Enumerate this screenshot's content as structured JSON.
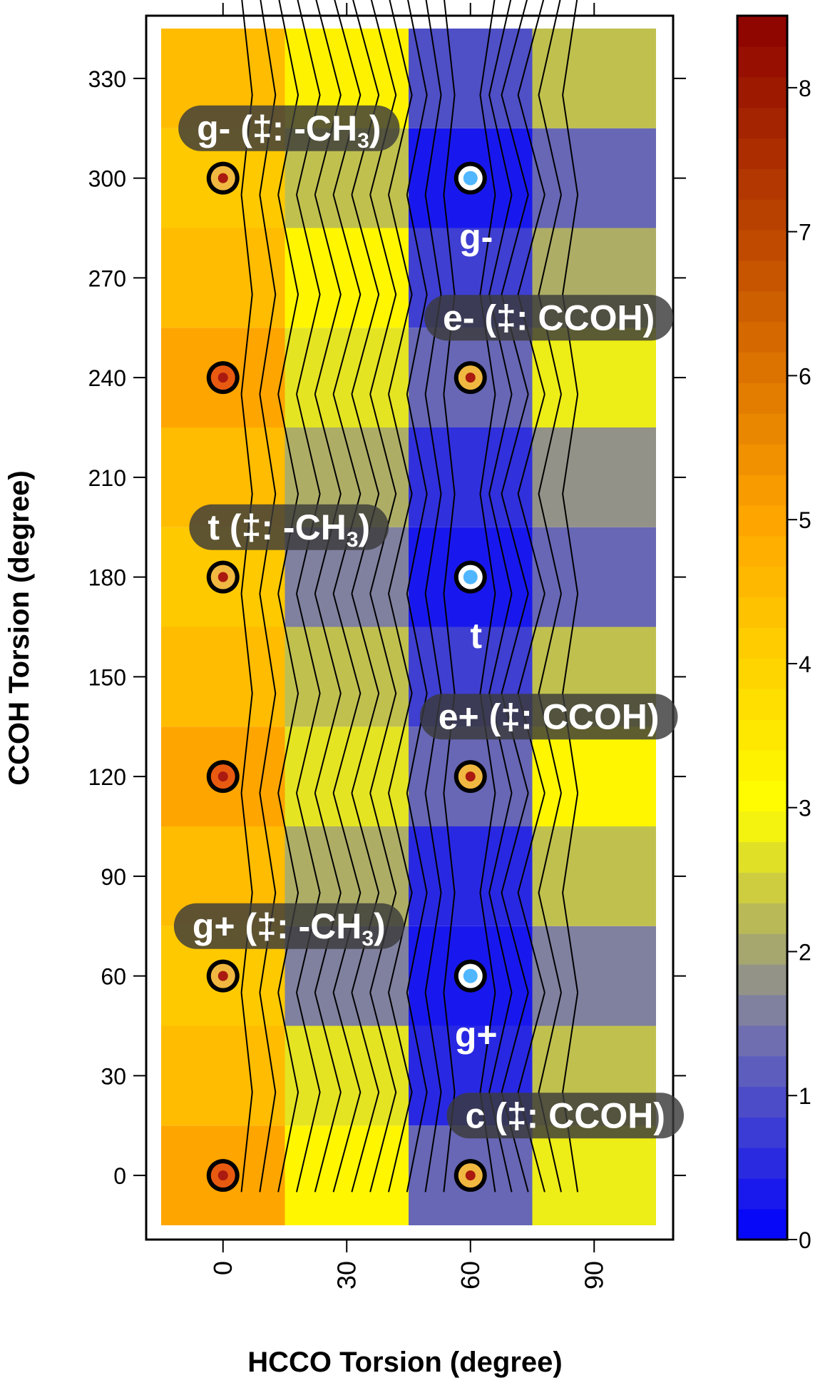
{
  "chart_data": {
    "type": "heatmap",
    "title": "",
    "xlabel": "HCCO Torsion  (degree)",
    "ylabel": "CCOH Torsion  (degree)",
    "x_ticks": [
      0,
      30,
      60,
      90
    ],
    "y_ticks": [
      0,
      30,
      60,
      90,
      120,
      150,
      180,
      210,
      240,
      270,
      300,
      330
    ],
    "xlim": [
      -15,
      105
    ],
    "ylim": [
      -15,
      345
    ],
    "x": [
      0,
      30,
      60,
      90
    ],
    "y": [
      0,
      30,
      60,
      90,
      120,
      150,
      180,
      210,
      240,
      270,
      300,
      330
    ],
    "z": [
      [
        5.0,
        3.2,
        1.3,
        2.8
      ],
      [
        4.5,
        2.7,
        0.5,
        2.3
      ],
      [
        4.2,
        1.6,
        0.3,
        1.6
      ],
      [
        4.5,
        2.1,
        0.5,
        2.3
      ],
      [
        5.0,
        2.7,
        1.3,
        3.2
      ],
      [
        4.5,
        2.3,
        0.8,
        2.3
      ],
      [
        4.2,
        1.6,
        0.3,
        1.3
      ],
      [
        4.5,
        2.1,
        0.6,
        1.8
      ],
      [
        5.0,
        2.7,
        1.3,
        2.8
      ],
      [
        4.5,
        3.2,
        0.8,
        2.1
      ],
      [
        4.2,
        2.3,
        0.3,
        1.3
      ],
      [
        4.5,
        3.3,
        1.0,
        2.3
      ]
    ],
    "colorbar": {
      "min": 0,
      "max": 8.5,
      "ticks": [
        0,
        1,
        2,
        3,
        4,
        5,
        6,
        7,
        8
      ],
      "stops": [
        "#0000ff",
        "#7777aa",
        "#ffff00",
        "#ffa500",
        "#8b0000"
      ]
    },
    "points": [
      {
        "x": 0,
        "y": 0,
        "kind": "transition-high"
      },
      {
        "x": 0,
        "y": 60,
        "kind": "transition"
      },
      {
        "x": 0,
        "y": 120,
        "kind": "transition-high"
      },
      {
        "x": 0,
        "y": 180,
        "kind": "transition"
      },
      {
        "x": 0,
        "y": 240,
        "kind": "transition-high"
      },
      {
        "x": 0,
        "y": 300,
        "kind": "transition"
      },
      {
        "x": 60,
        "y": 0,
        "kind": "transition"
      },
      {
        "x": 60,
        "y": 60,
        "kind": "minimum"
      },
      {
        "x": 60,
        "y": 120,
        "kind": "transition"
      },
      {
        "x": 60,
        "y": 180,
        "kind": "minimum"
      },
      {
        "x": 60,
        "y": 240,
        "kind": "transition"
      },
      {
        "x": 60,
        "y": 300,
        "kind": "minimum"
      }
    ],
    "labels": [
      {
        "text": "g-",
        "x": 60,
        "y": 283,
        "boxed": false
      },
      {
        "text": "t",
        "x": 60,
        "y": 163,
        "boxed": false
      },
      {
        "text": "g+",
        "x": 60,
        "y": 43,
        "boxed": false
      }
    ],
    "boxed_labels": [
      {
        "main": "g- (‡: -CH",
        "sub": "3",
        "tail": ")",
        "x": 16,
        "y": 315
      },
      {
        "main": "e- (‡: CCOH)",
        "sub": "",
        "tail": "",
        "x": 79,
        "y": 258
      },
      {
        "main": "t (‡: -CH",
        "sub": "3",
        "tail": ")",
        "x": 16,
        "y": 195
      },
      {
        "main": "e+ (‡: CCOH)",
        "sub": "",
        "tail": "",
        "x": 79,
        "y": 138
      },
      {
        "main": "g+ (‡: -CH",
        "sub": "3",
        "tail": ")",
        "x": 16,
        "y": 75
      },
      {
        "main": "c (‡: CCOH)",
        "sub": "",
        "tail": "",
        "x": 83,
        "y": 18
      }
    ],
    "colors": {
      "minimum_fill": "#4fb6ff",
      "transition_fill": "#f0b840",
      "transition_high_fill": "#e85a10",
      "point_center": "#aa1a10",
      "label_box": "#3a3a3a"
    }
  }
}
